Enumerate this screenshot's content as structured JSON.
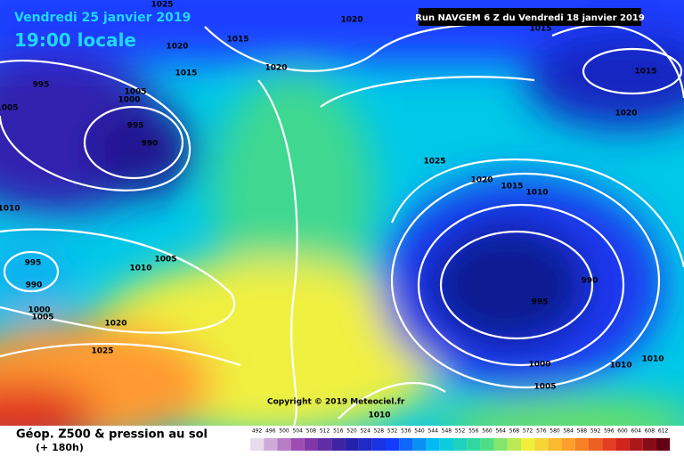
{
  "header": {
    "date": "Vendredi 25 janvier 2019",
    "time": "19:00 locale",
    "run": "Run NAVGEM 6 Z du Vendredi 18 janvier 2019"
  },
  "isobar_labels": [
    "1025",
    "1020",
    "1015",
    "1020",
    "1015",
    "1020",
    "1015",
    "995",
    "1005",
    "1000",
    "1005",
    "995",
    "990",
    "1015",
    "1020",
    "1025",
    "1020",
    "1015",
    "1010",
    "1010",
    "995",
    "990",
    "1010",
    "1005",
    "990",
    "995",
    "1000",
    "1005",
    "1020",
    "1025",
    "1000",
    "1010",
    "1010",
    "1005",
    "1010"
  ],
  "copyright": "Copyright © 2019 Meteociel.fr",
  "legend": {
    "title": "Géop. Z500 & pression au sol",
    "lead": "(+ 180h)",
    "scale": [
      492,
      496,
      500,
      504,
      508,
      512,
      516,
      520,
      524,
      528,
      532,
      536,
      540,
      544,
      548,
      552,
      556,
      560,
      564,
      568,
      572,
      576,
      580,
      584,
      588,
      592,
      596,
      600,
      604,
      608,
      612
    ]
  }
}
